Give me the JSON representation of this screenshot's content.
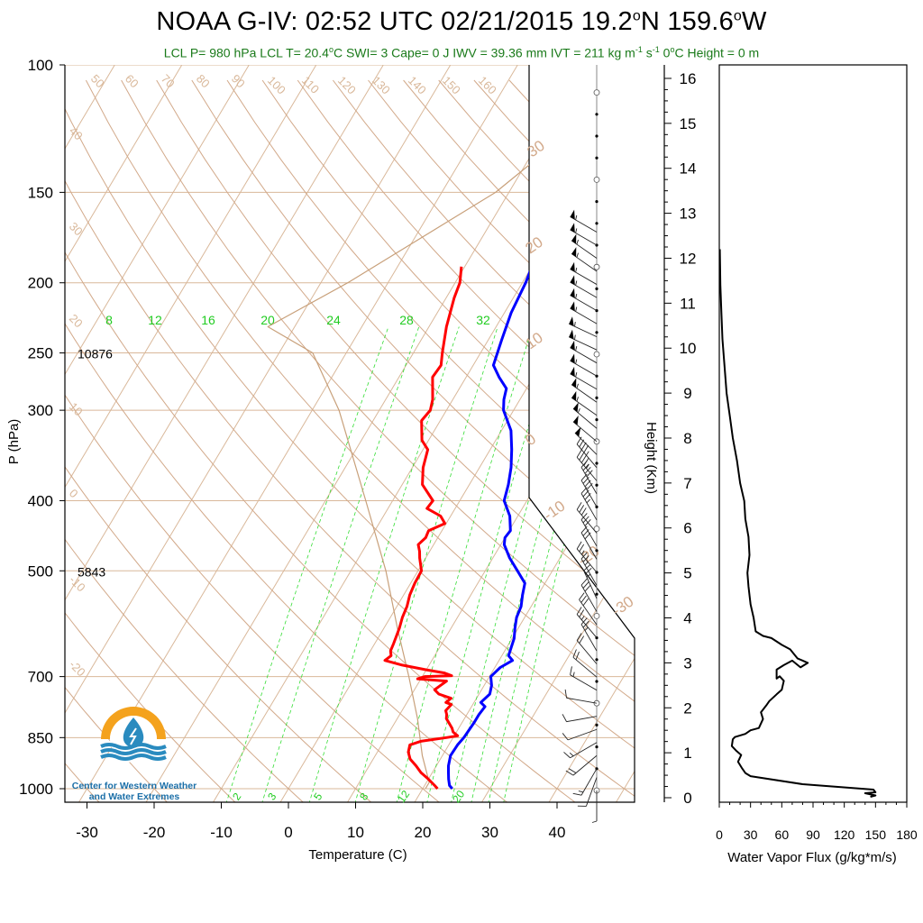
{
  "header": {
    "title_left": "NOAA G-IV: 02:52 UTC 02/21/2015  19.2",
    "title_lat_unit": "N 159.6",
    "title_lon_unit": "W",
    "degree": "o",
    "subtitle_part1": "LCL P= 980 hPa  LCL T= 20.4",
    "subtitle_part2": "C  SWI= 3  Cape= 0 J  IWV = 39.36 mm  IVT = 211 kg m",
    "subtitle_sup1": "-1",
    "subtitle_mid": " s",
    "subtitle_part3": "  0",
    "subtitle_part4": "C Height = 0 m"
  },
  "logo": {
    "caption_line1": "Center for Western Weather",
    "caption_line2": "and Water Extremes",
    "icon": "water-drop-sun-logo",
    "colors": {
      "sun": "#f4a21d",
      "water": "#2a8bbf",
      "text": "#1b6fa8"
    }
  },
  "colors": {
    "temperature": "#ff0000",
    "dewpoint": "#0000ff",
    "isotherm": "#d9b89a",
    "adiabat": "#d2a98a",
    "mixing_ratio": "#33dd33",
    "mixing_label": "#22cc22",
    "parcel": "#c8a07a",
    "flux_line": "#000000"
  },
  "chart_data": [
    {
      "type": "line",
      "name": "skew-t",
      "xlabel": "Temperature (C)",
      "ylabel": "P (hPa)",
      "x_ticks": [
        "-30",
        "-20",
        "-10",
        "0",
        "10",
        "20",
        "30",
        "40"
      ],
      "pressure_ticks": [
        "100",
        "150",
        "200",
        "250",
        "300",
        "400",
        "500",
        "700",
        "850",
        "1000"
      ],
      "height_annotations": [
        {
          "p": 250,
          "text": "10876"
        },
        {
          "p": 500,
          "text": "5843"
        }
      ],
      "isotherm_labels": [
        "50",
        "60",
        "70",
        "80",
        "90",
        "100",
        "110",
        "120",
        "130",
        "140",
        "150",
        "160",
        "40",
        "30",
        "20",
        "10",
        "0",
        "-10",
        "-20"
      ],
      "adiabat_labels": [
        "30",
        "20",
        "10",
        "0",
        "-10",
        "-20",
        "-30"
      ],
      "mixing_ratio_top_labels": [
        "8",
        "12",
        "16",
        "20",
        "24",
        "28",
        "32"
      ],
      "mixing_ratio_bottom_labels": [
        "2",
        "3",
        "5",
        "8",
        "12",
        "20"
      ],
      "temperature_profile": [
        [
          1000,
          22.2
        ],
        [
          990,
          21.5
        ],
        [
          970,
          20.0
        ],
        [
          950,
          18.3
        ],
        [
          930,
          17.0
        ],
        [
          910,
          15.5
        ],
        [
          890,
          14.6
        ],
        [
          870,
          14.2
        ],
        [
          860,
          15.5
        ],
        [
          850,
          19.0
        ],
        [
          845,
          20.5
        ],
        [
          835,
          19.5
        ],
        [
          825,
          19.0
        ],
        [
          810,
          18.0
        ],
        [
          800,
          17.3
        ],
        [
          790,
          17.0
        ],
        [
          780,
          16.5
        ],
        [
          765,
          16.8
        ],
        [
          760,
          15.8
        ],
        [
          750,
          16.2
        ],
        [
          740,
          14.0
        ],
        [
          730,
          13.0
        ],
        [
          720,
          13.5
        ],
        [
          710,
          14.0
        ],
        [
          705,
          9.5
        ],
        [
          700,
          10.4
        ],
        [
          698,
          14.3
        ],
        [
          692,
          13.0
        ],
        [
          685,
          10.0
        ],
        [
          675,
          6.0
        ],
        [
          665,
          3.0
        ],
        [
          655,
          3.5
        ],
        [
          645,
          3.0
        ],
        [
          630,
          2.8
        ],
        [
          600,
          2.3
        ],
        [
          580,
          1.8
        ],
        [
          560,
          1.5
        ],
        [
          540,
          0.9
        ],
        [
          520,
          0.6
        ],
        [
          500,
          0.5
        ],
        [
          480,
          -0.9
        ],
        [
          470,
          -1.5
        ],
        [
          460,
          -2.3
        ],
        [
          450,
          -1.8
        ],
        [
          440,
          -2.0
        ],
        [
          430,
          -0.2
        ],
        [
          420,
          -1.5
        ],
        [
          410,
          -4.2
        ],
        [
          400,
          -4.0
        ],
        [
          380,
          -7.0
        ],
        [
          360,
          -8.4
        ],
        [
          340,
          -9.3
        ],
        [
          330,
          -11.0
        ],
        [
          310,
          -12.8
        ],
        [
          300,
          -12.4
        ],
        [
          290,
          -13.0
        ],
        [
          270,
          -15.0
        ],
        [
          260,
          -14.8
        ],
        [
          250,
          -15.7
        ],
        [
          230,
          -17.4
        ],
        [
          210,
          -18.8
        ],
        [
          200,
          -19.3
        ],
        [
          190,
          -20.5
        ]
      ],
      "dewpoint_profile": [
        [
          1000,
          24.4
        ],
        [
          990,
          23.7
        ],
        [
          970,
          23.0
        ],
        [
          950,
          22.4
        ],
        [
          930,
          21.8
        ],
        [
          900,
          21.2
        ],
        [
          870,
          21.3
        ],
        [
          850,
          21.6
        ],
        [
          830,
          21.7
        ],
        [
          810,
          21.8
        ],
        [
          790,
          21.8
        ],
        [
          770,
          22.0
        ],
        [
          760,
          21.0
        ],
        [
          740,
          21.6
        ],
        [
          720,
          21.1
        ],
        [
          700,
          20.2
        ],
        [
          680,
          20.8
        ],
        [
          665,
          22.0
        ],
        [
          655,
          21.0
        ],
        [
          640,
          20.7
        ],
        [
          620,
          20.3
        ],
        [
          600,
          19.5
        ],
        [
          580,
          18.8
        ],
        [
          560,
          18.5
        ],
        [
          540,
          17.7
        ],
        [
          520,
          17.0
        ],
        [
          500,
          14.8
        ],
        [
          480,
          12.5
        ],
        [
          460,
          10.5
        ],
        [
          450,
          10.0
        ],
        [
          440,
          10.2
        ],
        [
          420,
          8.8
        ],
        [
          400,
          6.6
        ],
        [
          380,
          5.8
        ],
        [
          360,
          4.7
        ],
        [
          340,
          3.2
        ],
        [
          320,
          1.4
        ],
        [
          300,
          -1.5
        ],
        [
          290,
          -2.4
        ],
        [
          280,
          -3.0
        ],
        [
          270,
          -5.1
        ],
        [
          260,
          -7.0
        ],
        [
          240,
          -8.0
        ],
        [
          220,
          -9.0
        ],
        [
          200,
          -9.5
        ],
        [
          190,
          -10.0
        ]
      ],
      "parcel_profile": [
        [
          1000,
          20.4
        ],
        [
          980,
          20.4
        ],
        [
          900,
          17.0
        ],
        [
          800,
          13.0
        ],
        [
          700,
          8.0
        ],
        [
          600,
          2.0
        ],
        [
          500,
          -4.8
        ],
        [
          400,
          -14.0
        ],
        [
          300,
          -26.0
        ],
        [
          250,
          -35.0
        ],
        [
          230,
          -44.0
        ],
        [
          200,
          -36.0
        ],
        [
          150,
          -22.0
        ],
        [
          100,
          -10.0
        ]
      ]
    },
    {
      "type": "line",
      "name": "water-vapor-flux",
      "xlabel": "Water Vapor Flux (g/kg*m/s)",
      "ylabel": "Height (Km)",
      "x_ticks": [
        "0",
        "30",
        "60",
        "90",
        "120",
        "150",
        "180"
      ],
      "y_ticks": [
        "0",
        "1",
        "2",
        "3",
        "4",
        "5",
        "6",
        "7",
        "8",
        "9",
        "10",
        "11",
        "12",
        "13",
        "14",
        "15",
        "16"
      ],
      "xlim": [
        0,
        180
      ],
      "ylim": [
        -0.1,
        16.3
      ],
      "profile": [
        [
          145,
          0.02
        ],
        [
          150,
          0.05
        ],
        [
          140,
          0.1
        ],
        [
          150,
          0.12
        ],
        [
          148,
          0.18
        ],
        [
          80,
          0.3
        ],
        [
          30,
          0.48
        ],
        [
          25,
          0.55
        ],
        [
          22,
          0.65
        ],
        [
          18,
          0.8
        ],
        [
          21,
          0.95
        ],
        [
          16,
          1.05
        ],
        [
          12,
          1.15
        ],
        [
          13,
          1.3
        ],
        [
          15,
          1.35
        ],
        [
          25,
          1.42
        ],
        [
          30,
          1.5
        ],
        [
          38,
          1.55
        ],
        [
          42,
          1.75
        ],
        [
          40,
          1.9
        ],
        [
          45,
          2.05
        ],
        [
          48,
          2.15
        ],
        [
          55,
          2.3
        ],
        [
          60,
          2.4
        ],
        [
          62,
          2.6
        ],
        [
          58,
          2.7
        ],
        [
          55,
          2.65
        ],
        [
          55,
          2.85
        ],
        [
          62,
          2.95
        ],
        [
          70,
          3.05
        ],
        [
          78,
          2.9
        ],
        [
          85,
          3.0
        ],
        [
          75,
          3.1
        ],
        [
          68,
          3.3
        ],
        [
          60,
          3.4
        ],
        [
          50,
          3.55
        ],
        [
          42,
          3.6
        ],
        [
          35,
          3.7
        ],
        [
          33,
          4.0
        ],
        [
          30,
          4.3
        ],
        [
          28,
          4.7
        ],
        [
          27,
          5.0
        ],
        [
          29,
          5.4
        ],
        [
          28,
          5.8
        ],
        [
          25,
          6.2
        ],
        [
          24,
          6.6
        ],
        [
          20,
          7.0
        ],
        [
          17,
          7.5
        ],
        [
          13,
          8.0
        ],
        [
          10,
          8.5
        ],
        [
          7,
          9.0
        ],
        [
          5,
          9.6
        ],
        [
          3,
          10.2
        ],
        [
          2,
          10.8
        ],
        [
          1,
          11.4
        ],
        [
          0.5,
          12.2
        ]
      ]
    },
    {
      "type": "scatter",
      "name": "wind-barbs",
      "height_range_km": [
        0,
        16.3
      ],
      "barbs": [
        [
          0.0,
          180,
          5
        ],
        [
          0.3,
          200,
          10
        ],
        [
          0.5,
          210,
          15
        ],
        [
          0.8,
          230,
          20
        ],
        [
          1.1,
          240,
          15
        ],
        [
          1.4,
          250,
          10
        ],
        [
          1.7,
          260,
          10
        ],
        [
          2.0,
          280,
          10
        ],
        [
          2.3,
          300,
          15
        ],
        [
          2.6,
          310,
          20
        ],
        [
          2.9,
          320,
          20
        ],
        [
          3.2,
          330,
          25
        ],
        [
          3.5,
          320,
          25
        ],
        [
          3.8,
          325,
          30
        ],
        [
          4.1,
          330,
          30
        ],
        [
          4.4,
          335,
          25
        ],
        [
          4.7,
          330,
          25
        ],
        [
          5.0,
          320,
          25
        ],
        [
          5.3,
          330,
          30
        ],
        [
          5.6,
          330,
          30
        ],
        [
          5.9,
          320,
          30
        ],
        [
          6.2,
          330,
          35
        ],
        [
          6.5,
          330,
          40
        ],
        [
          6.8,
          330,
          40
        ],
        [
          7.1,
          320,
          45
        ],
        [
          7.4,
          320,
          45
        ],
        [
          7.7,
          315,
          50
        ],
        [
          8.0,
          310,
          50
        ],
        [
          8.3,
          310,
          55
        ],
        [
          8.6,
          305,
          55
        ],
        [
          8.9,
          305,
          55
        ],
        [
          9.2,
          300,
          55
        ],
        [
          9.5,
          300,
          55
        ],
        [
          9.8,
          300,
          55
        ],
        [
          10.1,
          295,
          55
        ],
        [
          10.4,
          295,
          55
        ],
        [
          10.7,
          300,
          55
        ],
        [
          11.0,
          300,
          55
        ],
        [
          11.3,
          300,
          55
        ],
        [
          11.6,
          300,
          55
        ],
        [
          11.9,
          305,
          55
        ],
        [
          12.2,
          305,
          55
        ],
        [
          12.5,
          300,
          55
        ],
        [
          12.8,
          300,
          55
        ]
      ]
    }
  ]
}
